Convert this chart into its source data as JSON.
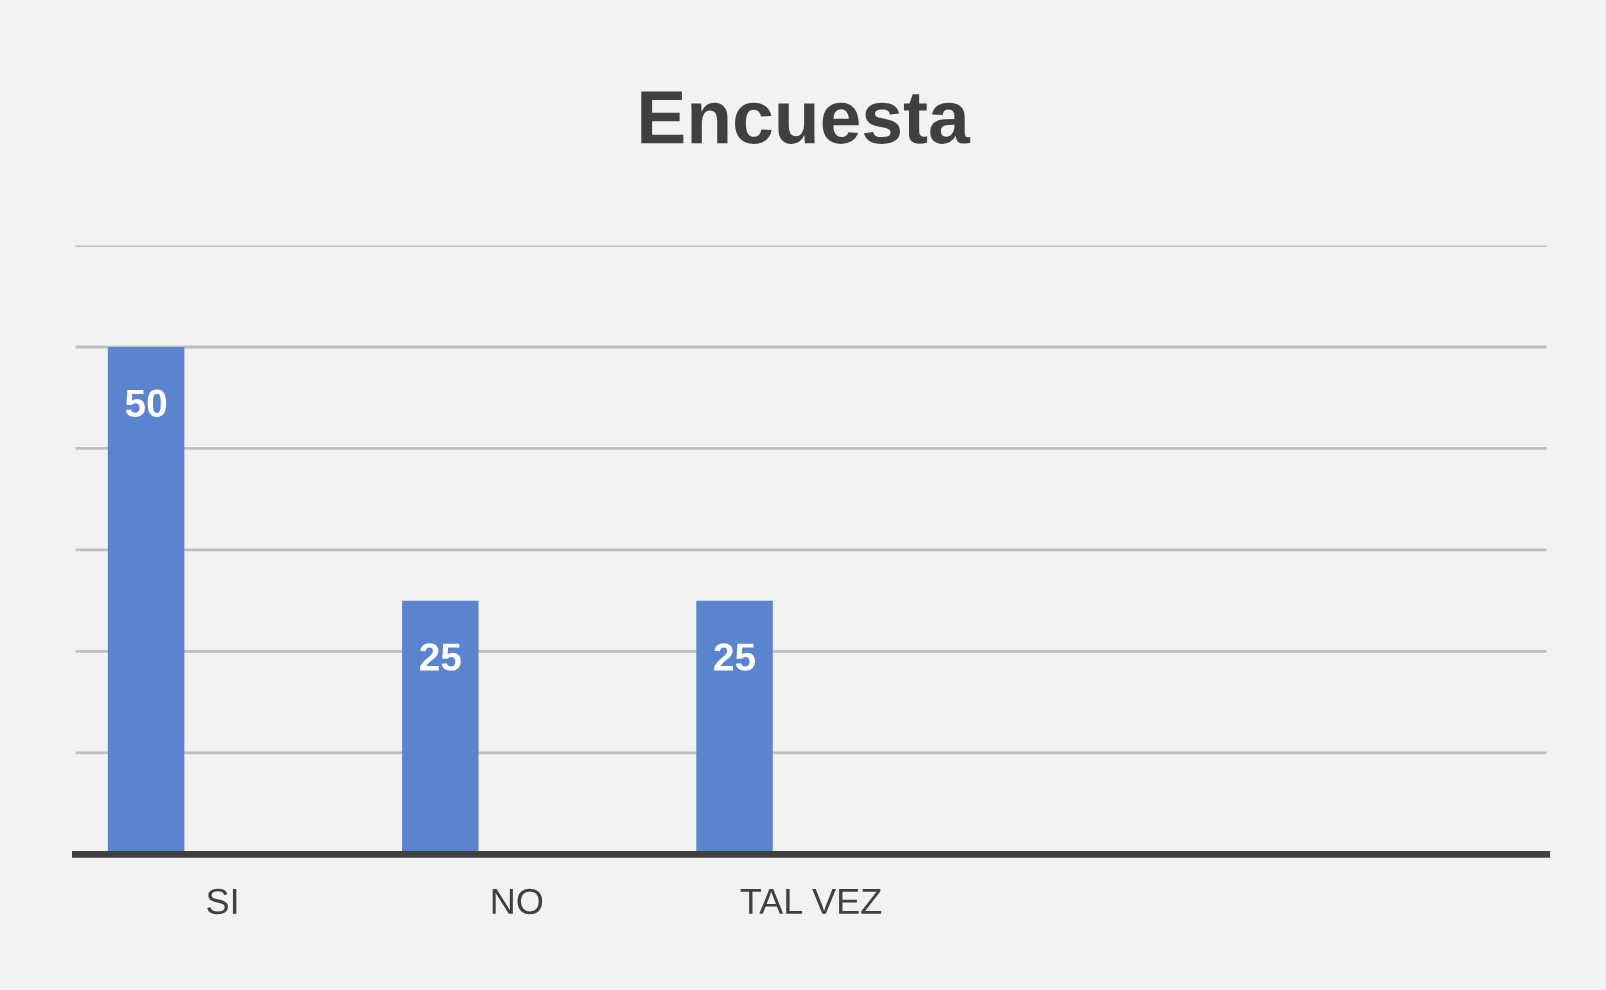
{
  "chart_data": {
    "type": "bar",
    "title": "Encuesta",
    "categories": [
      "SI",
      "NO",
      "TAL VEZ",
      null,
      null
    ],
    "series": [
      {
        "color": "#5b84cf",
        "values": [
          50,
          25,
          25,
          null,
          null
        ]
      },
      {
        "values": [
          null,
          null,
          null,
          null,
          null
        ]
      },
      {
        "values": [
          null,
          null,
          null,
          null,
          null
        ]
      }
    ],
    "ylim": [
      0,
      60
    ],
    "yticks": [
      {
        "value": 0,
        "label": null
      },
      {
        "value": 10,
        "label": null
      },
      {
        "value": 20,
        "label": null
      },
      {
        "value": 30,
        "label": null
      },
      {
        "value": 40,
        "label": null
      },
      {
        "value": 50,
        "label": null
      },
      {
        "value": 60,
        "label": null
      }
    ],
    "tick_labels": "x",
    "grid": "y",
    "data_labels": true,
    "legend": false
  }
}
